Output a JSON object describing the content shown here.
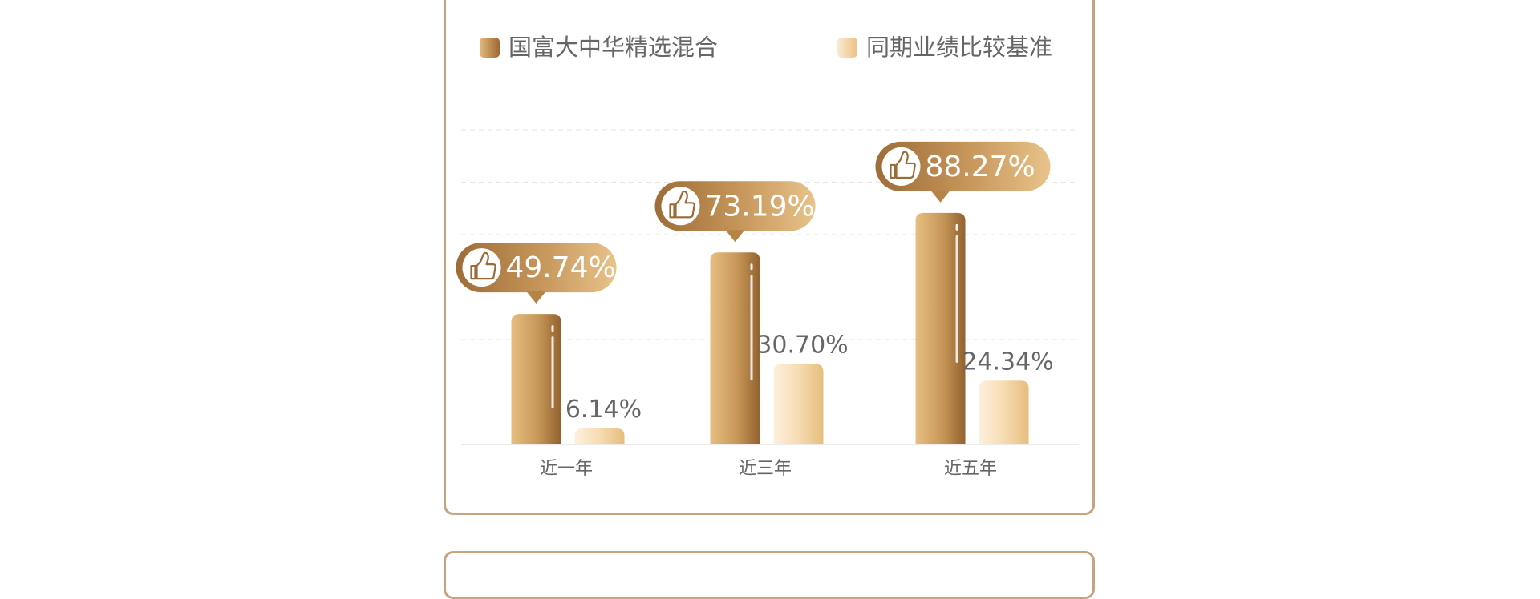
{
  "chart_data": {
    "type": "bar",
    "title": "",
    "xlabel": "",
    "ylabel": "",
    "ylim": [
      0,
      120
    ],
    "grid": true,
    "legend_position": "top",
    "categories": [
      "近一年",
      "近三年",
      "近五年"
    ],
    "series": [
      {
        "name": "国富大中华精选混合",
        "values": [
          49.74,
          73.19,
          88.27
        ],
        "labels": [
          "49.74%",
          "73.19%",
          "88.27%"
        ],
        "color": "#b98a52"
      },
      {
        "name": "同期业绩比较基准",
        "values": [
          6.14,
          30.7,
          24.34
        ],
        "labels": [
          "6.14%",
          "30.70%",
          "24.34%"
        ],
        "color": "#f1d4a4"
      }
    ]
  },
  "colors": {
    "border": "#c9a27f",
    "fund_dark": "#9b6a35",
    "fund_light": "#e3b979",
    "bench_light": "#fbebd3",
    "bench_dark": "#e9c285",
    "text": "#666666",
    "badge_text": "#ffffff"
  },
  "icons": {
    "badge_icon": "thumbs-up-icon"
  }
}
